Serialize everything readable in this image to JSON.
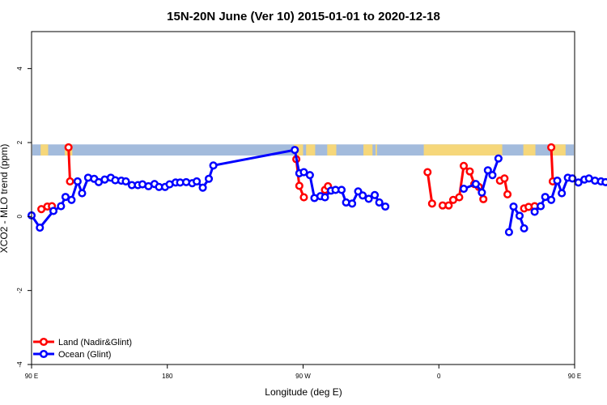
{
  "chart_data": {
    "type": "line",
    "title": "15N-20N June (Ver 10)   2015-01-01 to 2020-12-18",
    "xlabel": "Longitude (deg E)",
    "ylabel": "XCO2 - MLO trend (ppm)",
    "xlim": [
      90,
      450
    ],
    "ylim": [
      -4,
      5
    ],
    "x_ticks": [
      {
        "value": 90,
        "label": "90 E"
      },
      {
        "value": 180,
        "label": "180"
      },
      {
        "value": 270,
        "label": "90 W"
      },
      {
        "value": 360,
        "label": "0"
      },
      {
        "value": 450,
        "label": "90 E"
      },
      {
        "value": 540,
        "label": "180"
      }
    ],
    "y_ticks": [
      {
        "value": -4,
        "label": "-4"
      },
      {
        "value": -2,
        "label": "-2"
      },
      {
        "value": 0,
        "label": "0"
      },
      {
        "value": 2,
        "label": "2"
      },
      {
        "value": 4,
        "label": "4"
      }
    ],
    "grid": false,
    "legend_position": "bottom-left",
    "land_ocean_strip": {
      "y_range": [
        1.65,
        1.95
      ],
      "ocean_color": "#a3bbdc",
      "land_color": "#f6d77a",
      "land_segments": [
        [
          96,
          101
        ],
        [
          112,
          117
        ],
        [
          264,
          270
        ],
        [
          272,
          278
        ],
        [
          286,
          292
        ],
        [
          310,
          316
        ],
        [
          318,
          319
        ],
        [
          350,
          402
        ],
        [
          416,
          424
        ],
        [
          435,
          444
        ]
      ]
    },
    "series": [
      {
        "name": "Land (Nadir&Glint)",
        "color": "#ff0000",
        "segments": [
          [
            [
              96.5,
              0.2
            ],
            [
              100.5,
              0.27
            ],
            [
              103.5,
              0.28
            ]
          ],
          [
            [
              114.5,
              1.87
            ],
            [
              115.5,
              0.95
            ]
          ],
          [
            [
              265.5,
              1.55
            ],
            [
              267.5,
              0.83
            ],
            [
              270.5,
              0.52
            ]
          ],
          [
            [
              284.5,
              0.72
            ],
            [
              286.5,
              0.82
            ]
          ],
          [
            [
              352.5,
              1.2
            ],
            [
              355.5,
              0.35
            ]
          ],
          [
            [
              362.5,
              0.3
            ],
            [
              366.5,
              0.3
            ],
            [
              369.5,
              0.45
            ],
            [
              373.5,
              0.52
            ],
            [
              376.5,
              1.37
            ],
            [
              380.5,
              1.22
            ],
            [
              383.5,
              0.88
            ],
            [
              386.5,
              0.8
            ],
            [
              389.5,
              0.47
            ]
          ],
          [
            [
              400.5,
              0.97
            ],
            [
              403.5,
              1.03
            ],
            [
              405.5,
              0.6
            ]
          ],
          [
            [
              416.5,
              0.22
            ],
            [
              419.5,
              0.26
            ],
            [
              423.5,
              0.28
            ]
          ],
          [
            [
              434.5,
              1.87
            ],
            [
              435.5,
              0.95
            ]
          ]
        ]
      },
      {
        "name": "Ocean (Glint)",
        "color": "#0000ff",
        "segments": [
          [
            [
              90,
              0.03
            ],
            [
              95.5,
              -0.3
            ],
            [
              104.5,
              0.15
            ],
            [
              109.5,
              0.28
            ],
            [
              112.5,
              0.53
            ],
            [
              116.5,
              0.45
            ],
            [
              120.5,
              0.95
            ],
            [
              123.5,
              0.63
            ],
            [
              127.5,
              1.05
            ],
            [
              131.5,
              1.02
            ],
            [
              134.5,
              0.93
            ],
            [
              138.5,
              1.0
            ],
            [
              142.5,
              1.05
            ],
            [
              145.5,
              0.98
            ],
            [
              149.5,
              0.97
            ],
            [
              152.5,
              0.95
            ],
            [
              156.5,
              0.85
            ],
            [
              160.5,
              0.85
            ],
            [
              163.5,
              0.87
            ],
            [
              167.5,
              0.82
            ],
            [
              171.5,
              0.88
            ],
            [
              174.5,
              0.8
            ],
            [
              178.5,
              0.8
            ],
            [
              181.5,
              0.87
            ],
            [
              185.5,
              0.92
            ],
            [
              188.5,
              0.92
            ],
            [
              192.5,
              0.93
            ],
            [
              196.5,
              0.9
            ],
            [
              199.5,
              0.95
            ],
            [
              203.5,
              0.78
            ],
            [
              207.5,
              1.02
            ],
            [
              210.5,
              1.38
            ],
            [
              264.5,
              1.8
            ],
            [
              267.5,
              1.17
            ],
            [
              270.5,
              1.2
            ],
            [
              274.5,
              1.12
            ],
            [
              277.5,
              0.5
            ],
            [
              281.5,
              0.55
            ],
            [
              284.5,
              0.52
            ],
            [
              288.5,
              0.7
            ],
            [
              291.5,
              0.72
            ],
            [
              295.5,
              0.72
            ],
            [
              298.5,
              0.38
            ],
            [
              302.5,
              0.35
            ],
            [
              306.5,
              0.68
            ],
            [
              309.5,
              0.57
            ],
            [
              313.5,
              0.48
            ],
            [
              317.5,
              0.58
            ],
            [
              320.5,
              0.38
            ],
            [
              324.5,
              0.27
            ]
          ],
          [
            [
              376.5,
              0.75
            ],
            [
              384.5,
              0.88
            ],
            [
              388.5,
              0.65
            ],
            [
              392.5,
              1.25
            ],
            [
              395.5,
              1.12
            ],
            [
              399.5,
              1.57
            ]
          ],
          [
            [
              406.5,
              -0.42
            ],
            [
              409.5,
              0.27
            ],
            [
              413.5,
              0.02
            ],
            [
              416.5,
              -0.32
            ]
          ],
          [
            [
              423.5,
              0.13
            ],
            [
              427.5,
              0.28
            ],
            [
              430.5,
              0.53
            ],
            [
              434.5,
              0.45
            ],
            [
              438.5,
              0.97
            ],
            [
              441.5,
              0.63
            ],
            [
              445.5,
              1.05
            ],
            [
              448.5,
              1.03
            ],
            [
              452.5,
              0.92
            ],
            [
              456.5,
              1.0
            ],
            [
              459.5,
              1.03
            ],
            [
              463.5,
              0.97
            ],
            [
              467.5,
              0.95
            ],
            [
              470.5,
              0.93
            ],
            [
              474.5,
              0.83
            ]
          ]
        ]
      }
    ]
  }
}
